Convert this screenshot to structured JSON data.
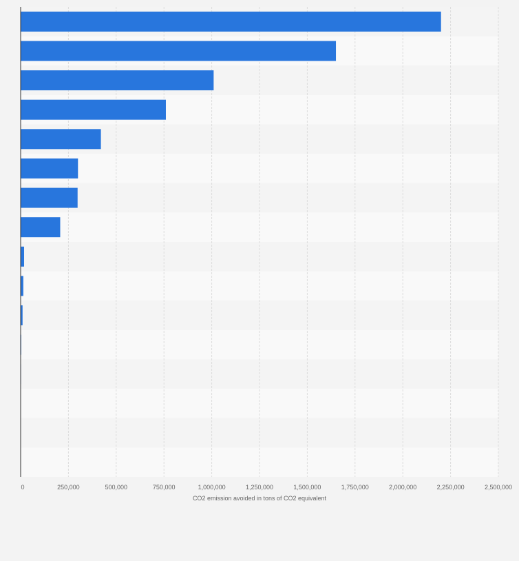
{
  "chart_data": {
    "type": "bar",
    "orientation": "horizontal",
    "categories": [
      "",
      "",
      "",
      "",
      "",
      "",
      "",
      "",
      "",
      "",
      "",
      "",
      "",
      "",
      "",
      ""
    ],
    "values": [
      2200000,
      1650000,
      1010000,
      760000,
      420000,
      300000,
      298000,
      207000,
      18000,
      14000,
      10000,
      3000,
      2000,
      0,
      0,
      0
    ],
    "xlabel": "CO2 emission avoided in tons of CO2 equivalent",
    "ylabel": "",
    "xlim": [
      0,
      2500000
    ],
    "x_ticks": [
      "0",
      "250,000",
      "500,000",
      "750,000",
      "1,000,000",
      "1,250,000",
      "1,500,000",
      "1,750,000",
      "2,000,000",
      "2,250,000",
      "2,500,000"
    ],
    "x_tick_values": [
      0,
      250000,
      500000,
      750000,
      1000000,
      1250000,
      1500000,
      1750000,
      2000000,
      2250000,
      2500000
    ],
    "grid": true,
    "bar_color": "#2876dd",
    "band_colors": [
      "#f4f4f4",
      "#f9f9f9"
    ],
    "background": "#f3f3f3"
  }
}
